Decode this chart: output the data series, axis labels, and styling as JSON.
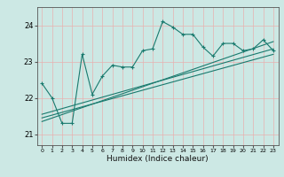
{
  "title": "",
  "xlabel": "Humidex (Indice chaleur)",
  "ylabel": "",
  "bg_color": "#cce8e4",
  "line_color": "#1a7a6e",
  "grid_color": "#e8b0b0",
  "xlim": [
    -0.5,
    23.5
  ],
  "ylim": [
    20.7,
    24.5
  ],
  "xticks": [
    0,
    1,
    2,
    3,
    4,
    5,
    6,
    7,
    8,
    9,
    10,
    11,
    12,
    13,
    14,
    15,
    16,
    17,
    18,
    19,
    20,
    21,
    22,
    23
  ],
  "yticks": [
    21,
    22,
    23,
    24
  ],
  "main_x": [
    0,
    1,
    2,
    3,
    4,
    5,
    6,
    7,
    8,
    9,
    10,
    11,
    12,
    13,
    14,
    15,
    16,
    17,
    18,
    19,
    20,
    21,
    22,
    23
  ],
  "main_y": [
    22.4,
    22.0,
    21.3,
    21.3,
    23.2,
    22.1,
    22.6,
    22.9,
    22.85,
    22.85,
    23.3,
    23.35,
    24.1,
    23.95,
    23.75,
    23.75,
    23.4,
    23.15,
    23.5,
    23.5,
    23.3,
    23.35,
    23.6,
    23.3
  ],
  "line1_x": [
    0,
    23
  ],
  "line1_y": [
    21.55,
    23.35
  ],
  "line2_x": [
    0,
    23
  ],
  "line2_y": [
    21.35,
    23.55
  ],
  "line3_x": [
    0,
    23
  ],
  "line3_y": [
    21.45,
    23.2
  ]
}
